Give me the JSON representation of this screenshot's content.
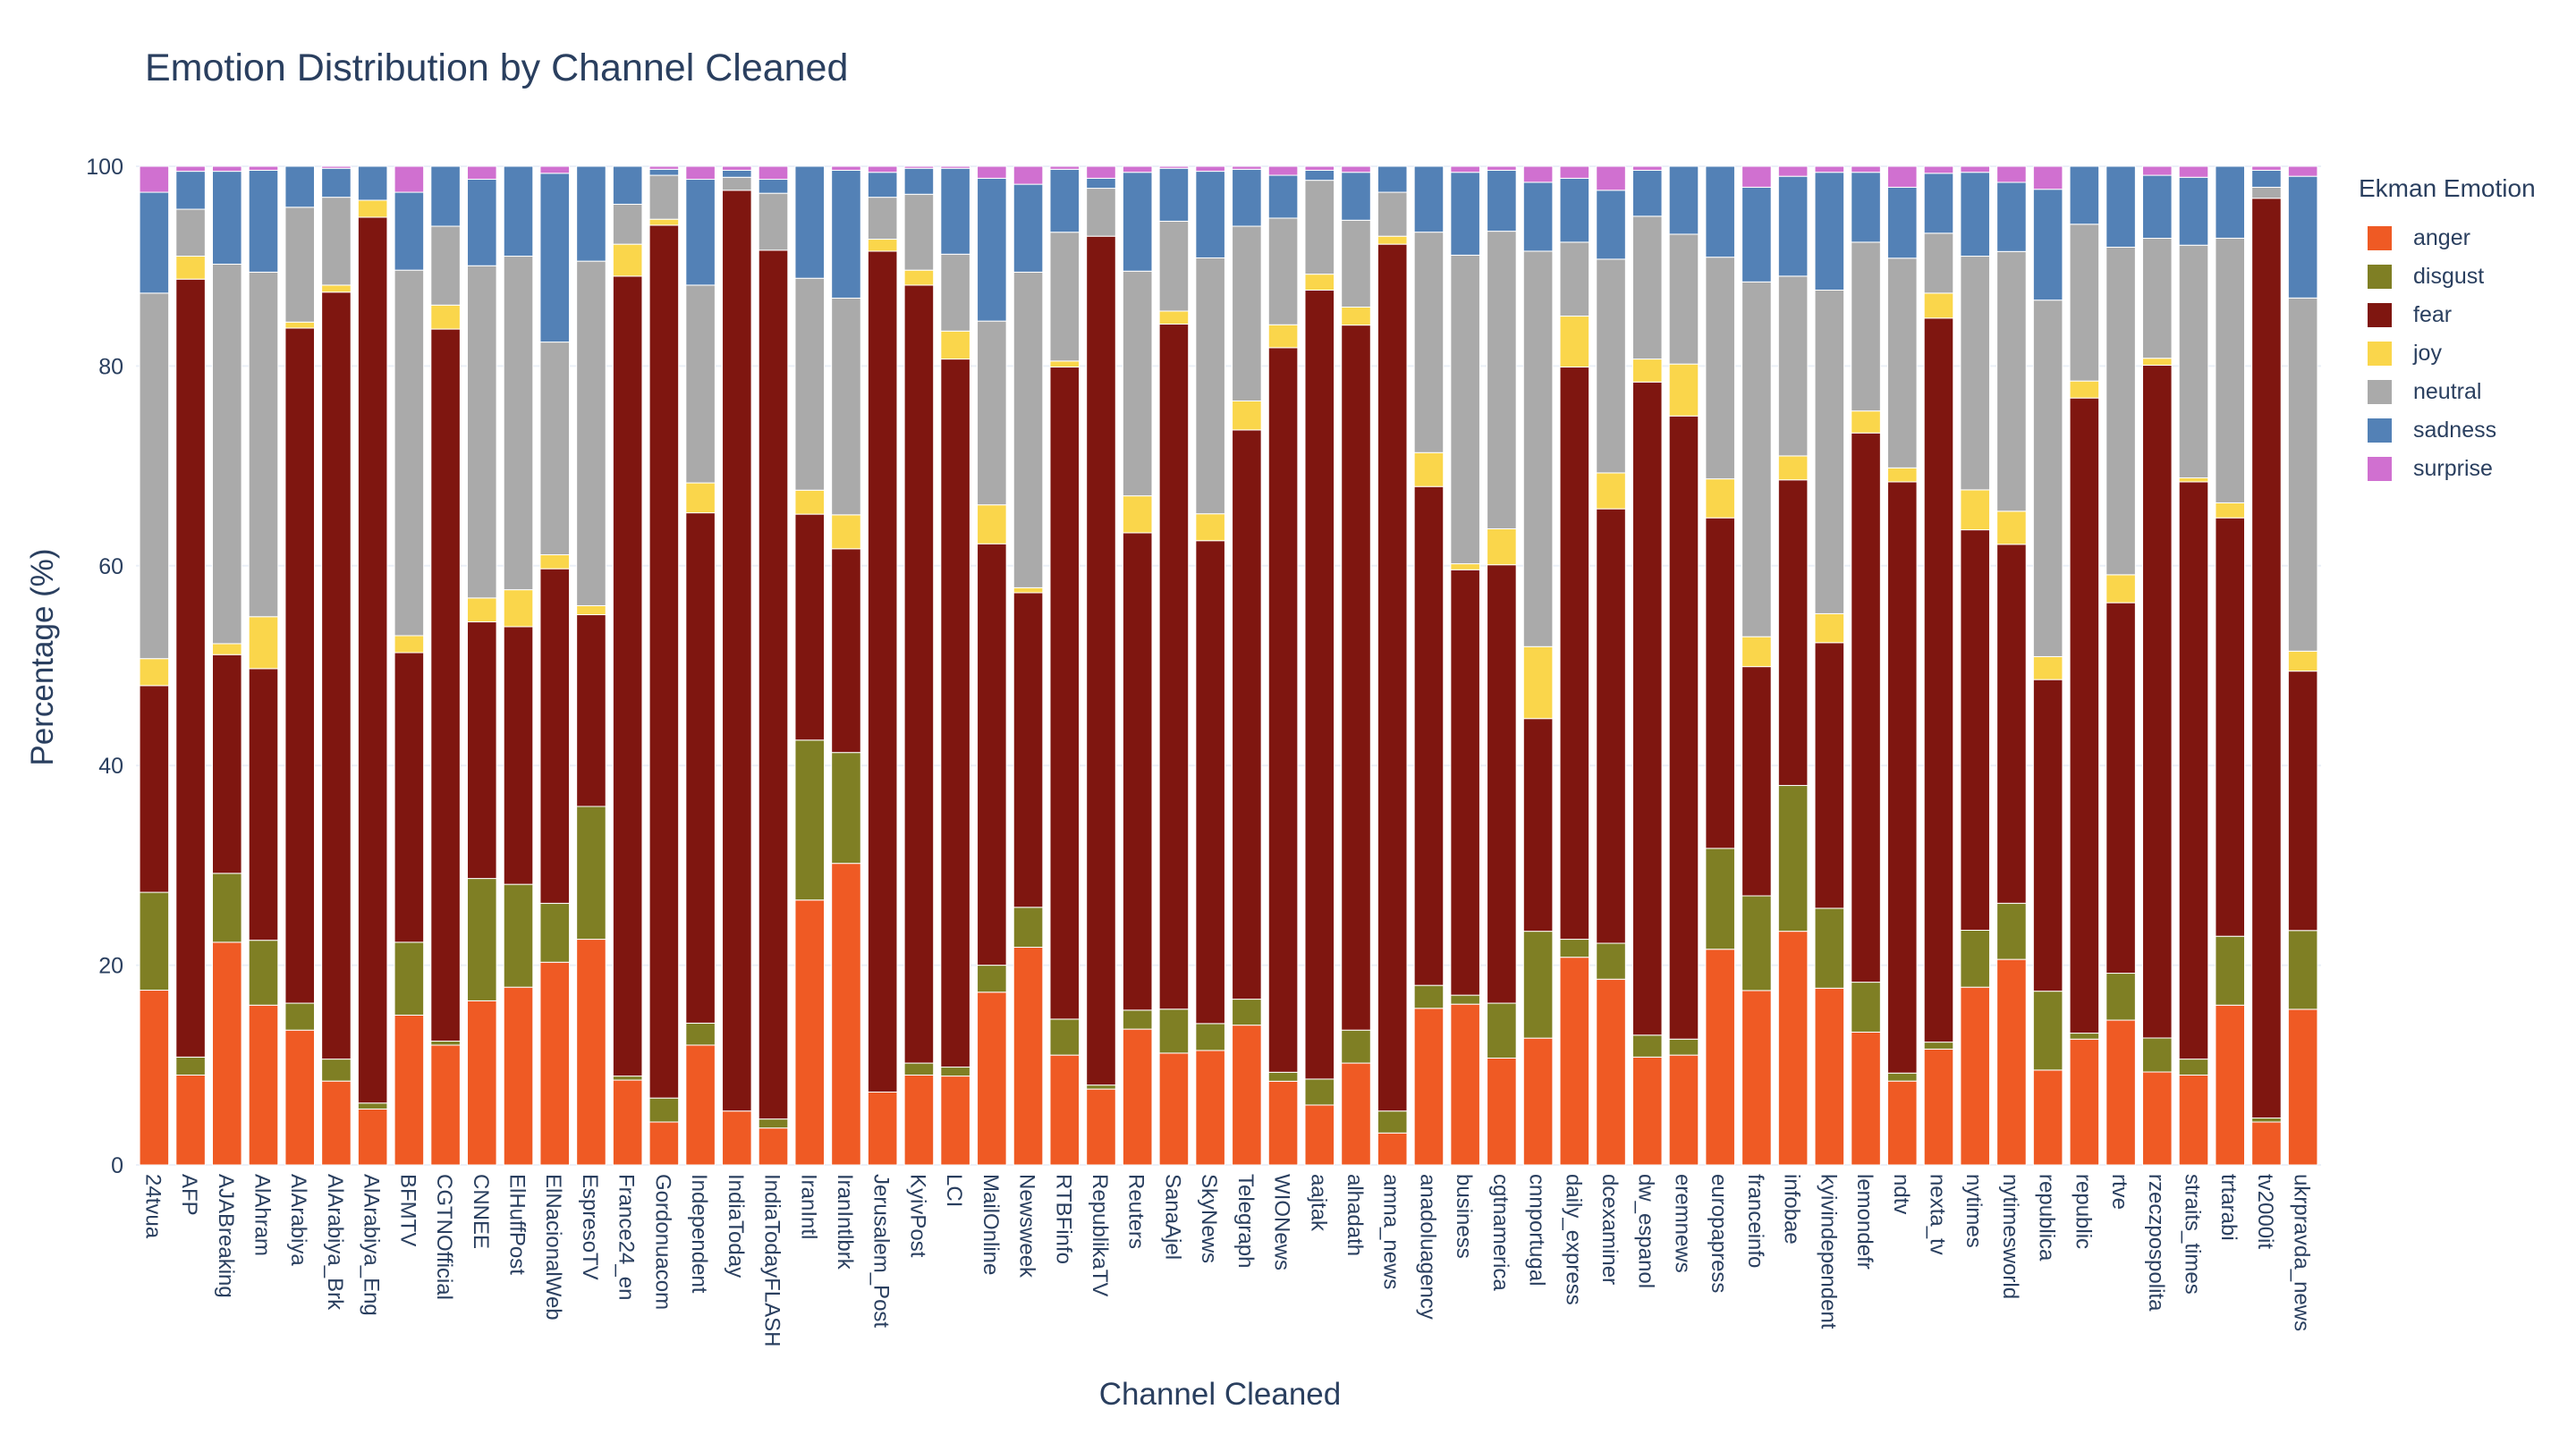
{
  "chart_data": {
    "type": "bar",
    "stacked": true,
    "title": "Emotion Distribution by Channel Cleaned",
    "xlabel": "Channel Cleaned",
    "ylabel": "Percentage (%)",
    "ylim": [
      0,
      100
    ],
    "y_ticks": [
      "0",
      "20",
      "40",
      "60",
      "80",
      "100"
    ],
    "grid": true,
    "legend_title": "Ekman Emotion",
    "legend_position": "right",
    "categories": [
      "24tvua",
      "AFP",
      "AJABreaking",
      "AlAhram",
      "AlArabiya",
      "AlArabiya_Brk",
      "AlArabiya_Eng",
      "BFMTV",
      "CGTNOfficial",
      "CNNEE",
      "ElHuffPost",
      "ElNacionalWeb",
      "EspresoTV",
      "France24_en",
      "Gordonuacom",
      "Independent",
      "IndiaToday",
      "IndiaTodayFLASH",
      "IranIntl",
      "IranIntlbrk",
      "Jerusalem_Post",
      "KyivPost",
      "LCI",
      "MailOnline",
      "Newsweek",
      "RTBFinfo",
      "RepublikaTV",
      "Reuters",
      "SanaAjel",
      "SkyNews",
      "Telegraph",
      "WIONews",
      "aajtak",
      "alhadath",
      "amna_news",
      "anadoluagency",
      "business",
      "cgtnamerica",
      "cnnportugal",
      "daily_express",
      "dcexaminer",
      "dw_espanol",
      "eremnews",
      "europapress",
      "franceinfo",
      "infobae",
      "kyivindependent",
      "lemondefr",
      "ndtv",
      "nexta_tv",
      "nytimes",
      "nytimesworld",
      "republica",
      "republic",
      "rtve",
      "rzeczpospolita",
      "straits_times",
      "trtarabi",
      "tv2000it",
      "ukrpravda_news"
    ],
    "series": [
      {
        "name": "anger",
        "color": "#ef5a24",
        "values": [
          17.5,
          9,
          22.3,
          16,
          13.5,
          8.4,
          5.6,
          15,
          12,
          16.5,
          17.8,
          20.3,
          22.6,
          8.5,
          4.3,
          12,
          5.4,
          3.7,
          26.5,
          30.2,
          7.3,
          9,
          8.9,
          17.3,
          21.8,
          11,
          7.6,
          13.6,
          11.2,
          11.5,
          14,
          8.4,
          6,
          10.2,
          3.2,
          15.7,
          16.1,
          10.7,
          12.7,
          20.8,
          18.6,
          10.8,
          11,
          21.6,
          17.5,
          23.4,
          17.7,
          13.3,
          8.4,
          11.6,
          17.8,
          20.5,
          9.5,
          12.6,
          14.5,
          9.3,
          9,
          16,
          4.3,
          15.6
        ]
      },
      {
        "name": "disgust",
        "color": "#7f7f24",
        "values": [
          9.8,
          1.8,
          6.9,
          6.5,
          2.7,
          2.2,
          0.6,
          7.3,
          0.4,
          12.3,
          10.3,
          5.9,
          13.3,
          0.4,
          2.4,
          2.2,
          0,
          0.9,
          16,
          11.1,
          0,
          1.2,
          0.9,
          2.7,
          4,
          3.6,
          0.4,
          1.9,
          4.4,
          2.7,
          2.6,
          0.9,
          2.6,
          3.3,
          2.2,
          2.3,
          0.9,
          5.5,
          10.7,
          1.8,
          3.6,
          2.2,
          1.6,
          10.1,
          9.5,
          14.6,
          8,
          5,
          0.8,
          0.7,
          5.7,
          5.6,
          7.9,
          0.6,
          4.7,
          3.4,
          1.6,
          6.9,
          0.4,
          7.9
        ]
      },
      {
        "name": "fear",
        "color": "#7f1610",
        "values": [
          20.7,
          77.9,
          21.9,
          27.2,
          67.6,
          76.8,
          88.7,
          29,
          71.3,
          25.8,
          25.8,
          33.5,
          19.2,
          80.1,
          87.4,
          51.1,
          92.2,
          87,
          22.6,
          20.4,
          84.2,
          77.9,
          70.9,
          42.2,
          31.5,
          65.3,
          85,
          47.8,
          68.6,
          48.5,
          57,
          72.7,
          79,
          70.6,
          86.8,
          50,
          42.6,
          43.9,
          21.3,
          57.3,
          43.5,
          65.4,
          62.4,
          33.1,
          23,
          30.6,
          26.6,
          55,
          59.2,
          72.5,
          40.1,
          35.8,
          31.2,
          63.6,
          37.1,
          67.3,
          57.8,
          41.9,
          92.1,
          26
        ]
      },
      {
        "name": "joy",
        "color": "#fad64b",
        "values": [
          2.7,
          2.3,
          1.1,
          5.2,
          0.6,
          0.7,
          1.7,
          1.7,
          2.4,
          2.4,
          3.7,
          1.4,
          0.9,
          3.2,
          0.6,
          3,
          0,
          0,
          2.4,
          3.4,
          1.2,
          1.5,
          2.8,
          3.9,
          0.5,
          0.6,
          0,
          3.7,
          1.3,
          2.7,
          2.9,
          2.3,
          1.6,
          1.8,
          0.8,
          3.4,
          0.6,
          3.6,
          7.2,
          5.1,
          3.6,
          2.3,
          5.2,
          3.9,
          3,
          2.4,
          2.9,
          2.2,
          1.4,
          2.5,
          4,
          3.3,
          2.3,
          1.7,
          2.8,
          0.7,
          0.4,
          1.5,
          0,
          2
        ]
      },
      {
        "name": "neutral",
        "color": "#aaaaaa",
        "values": [
          36.6,
          4.7,
          38,
          34.5,
          11.5,
          8.8,
          0,
          36.6,
          7.9,
          33.4,
          33.4,
          21.3,
          34.5,
          4,
          4.4,
          19.8,
          1.3,
          5.7,
          21.2,
          21.7,
          4.2,
          7.6,
          7.7,
          18.4,
          31.6,
          12.9,
          4.8,
          22.5,
          9,
          25.7,
          17.5,
          10.7,
          9.4,
          8.7,
          4.4,
          22.1,
          30.9,
          29.8,
          39.6,
          7.4,
          21.4,
          14.3,
          13,
          22.2,
          35.6,
          18,
          32.4,
          16.9,
          21,
          6,
          23.4,
          25.9,
          35.7,
          15.7,
          32.8,
          12,
          23.3,
          26.5,
          1.1,
          35.4
        ]
      },
      {
        "name": "sadness",
        "color": "#5381b6",
        "values": [
          10.1,
          3.8,
          9.3,
          10.2,
          4.1,
          2.9,
          3.4,
          7.8,
          6,
          8.7,
          9,
          16.9,
          9.5,
          3.8,
          0.6,
          10.6,
          0.7,
          1.4,
          11.2,
          12.8,
          2.5,
          2.6,
          8.6,
          14.3,
          8.8,
          6.3,
          1,
          9.9,
          5.3,
          8.7,
          5.7,
          4.3,
          1,
          4.8,
          2.6,
          6.6,
          8.3,
          6.1,
          6.9,
          6.4,
          6.9,
          4.6,
          6.8,
          9.1,
          9.5,
          10,
          11.8,
          7,
          7.1,
          6,
          8.4,
          6.9,
          11.1,
          5.8,
          8.1,
          6.3,
          6.8,
          7.2,
          1.7,
          12.2
        ]
      },
      {
        "name": "surprise",
        "color": "#d070d0",
        "values": [
          2.6,
          0.5,
          0.5,
          0.4,
          0,
          0.2,
          0,
          2.6,
          0,
          1.3,
          0,
          0.7,
          0,
          0,
          0.3,
          1.3,
          0.4,
          1.3,
          0,
          0.4,
          0.6,
          0.2,
          0.2,
          1.2,
          1.8,
          0.3,
          1.2,
          0.6,
          0.2,
          0.5,
          0.3,
          0.9,
          0.4,
          0.6,
          0,
          0,
          0.6,
          0.4,
          1.6,
          1.2,
          2.4,
          0.4,
          0,
          0,
          2.1,
          1,
          0.6,
          0.6,
          2.1,
          0.7,
          0.6,
          1.6,
          2.3,
          0,
          0,
          0.9,
          1.1,
          0,
          0.4,
          1
        ]
      }
    ]
  }
}
